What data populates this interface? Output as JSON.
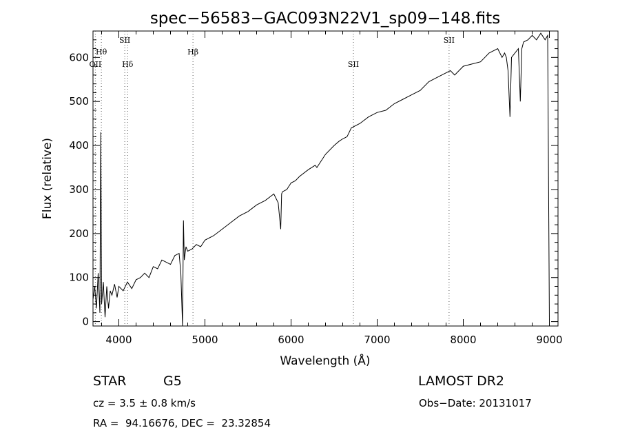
{
  "chart_data": {
    "type": "line",
    "title": "spec−56583−GAC093N22V1_sp09−148.fits",
    "xlabel": "Wavelength (Å)",
    "ylabel": "Flux (relative)",
    "xlim": [
      3700,
      9100
    ],
    "ylim": [
      -10,
      660
    ],
    "xticks": [
      "4000",
      "5000",
      "6000",
      "7000",
      "8000",
      "9000"
    ],
    "yticks": [
      "0",
      "100",
      "200",
      "300",
      "400",
      "500",
      "600"
    ],
    "grid": false,
    "series": [
      {
        "x": [
          3700,
          3720,
          3740,
          3760,
          3780,
          3790,
          3800,
          3820,
          3840,
          3860,
          3880,
          3900,
          3920,
          3950,
          3980,
          4000,
          4050,
          4100,
          4150,
          4200,
          4250,
          4300,
          4350,
          4400,
          4450,
          4500,
          4550,
          4600,
          4650,
          4700,
          4720,
          4740,
          4750,
          4760,
          4780,
          4800,
          4850,
          4900,
          4950,
          5000,
          5100,
          5200,
          5300,
          5400,
          5500,
          5600,
          5700,
          5800,
          5850,
          5880,
          5890,
          5900,
          5950,
          6000,
          6050,
          6100,
          6200,
          6280,
          6300,
          6350,
          6400,
          6500,
          6560,
          6600,
          6650,
          6700,
          6800,
          6900,
          7000,
          7100,
          7200,
          7300,
          7400,
          7500,
          7600,
          7700,
          7800,
          7850,
          7900,
          8000,
          8100,
          8200,
          8250,
          8300,
          8400,
          8450,
          8480,
          8500,
          8520,
          8542,
          8560,
          8600,
          8640,
          8662,
          8680,
          8700,
          8750,
          8800,
          8850,
          8900,
          8950,
          8980,
          9000
        ],
        "y": [
          50,
          80,
          30,
          110,
          20,
          430,
          40,
          90,
          10,
          80,
          30,
          70,
          60,
          85,
          55,
          80,
          70,
          90,
          75,
          95,
          100,
          110,
          100,
          125,
          120,
          140,
          135,
          130,
          150,
          155,
          110,
          -10,
          230,
          140,
          170,
          160,
          165,
          175,
          170,
          185,
          195,
          210,
          225,
          240,
          250,
          265,
          275,
          290,
          270,
          210,
          290,
          295,
          300,
          315,
          320,
          330,
          345,
          355,
          350,
          365,
          380,
          400,
          410,
          415,
          420,
          440,
          450,
          465,
          475,
          480,
          495,
          505,
          515,
          525,
          545,
          555,
          565,
          570,
          560,
          580,
          585,
          590,
          600,
          610,
          620,
          600,
          610,
          600,
          570,
          465,
          600,
          610,
          620,
          500,
          620,
          635,
          640,
          650,
          640,
          655,
          640,
          650,
          0
        ]
      }
    ],
    "annotations": [
      {
        "label": "OII",
        "x": 3727,
        "row": 3
      },
      {
        "label": "Hθ",
        "x": 3797,
        "row": 2
      },
      {
        "label": "SII",
        "x": 4069,
        "row": 1
      },
      {
        "label": "Hδ",
        "x": 4102,
        "row": 3
      },
      {
        "label": "Hβ",
        "x": 4861,
        "row": 2
      },
      {
        "label": "SII",
        "x": 6724,
        "row": 3
      },
      {
        "label": "SII",
        "x": 7835,
        "row": 1
      }
    ]
  },
  "footer": {
    "object_type": "STAR",
    "subclass": "G5",
    "survey": "LAMOST DR2",
    "cz": "cz = 3.5 ± 0.8 km/s",
    "obs_date": "Obs−Date: 20131017",
    "radec": "RA =  94.16676, DEC =  23.32854"
  }
}
